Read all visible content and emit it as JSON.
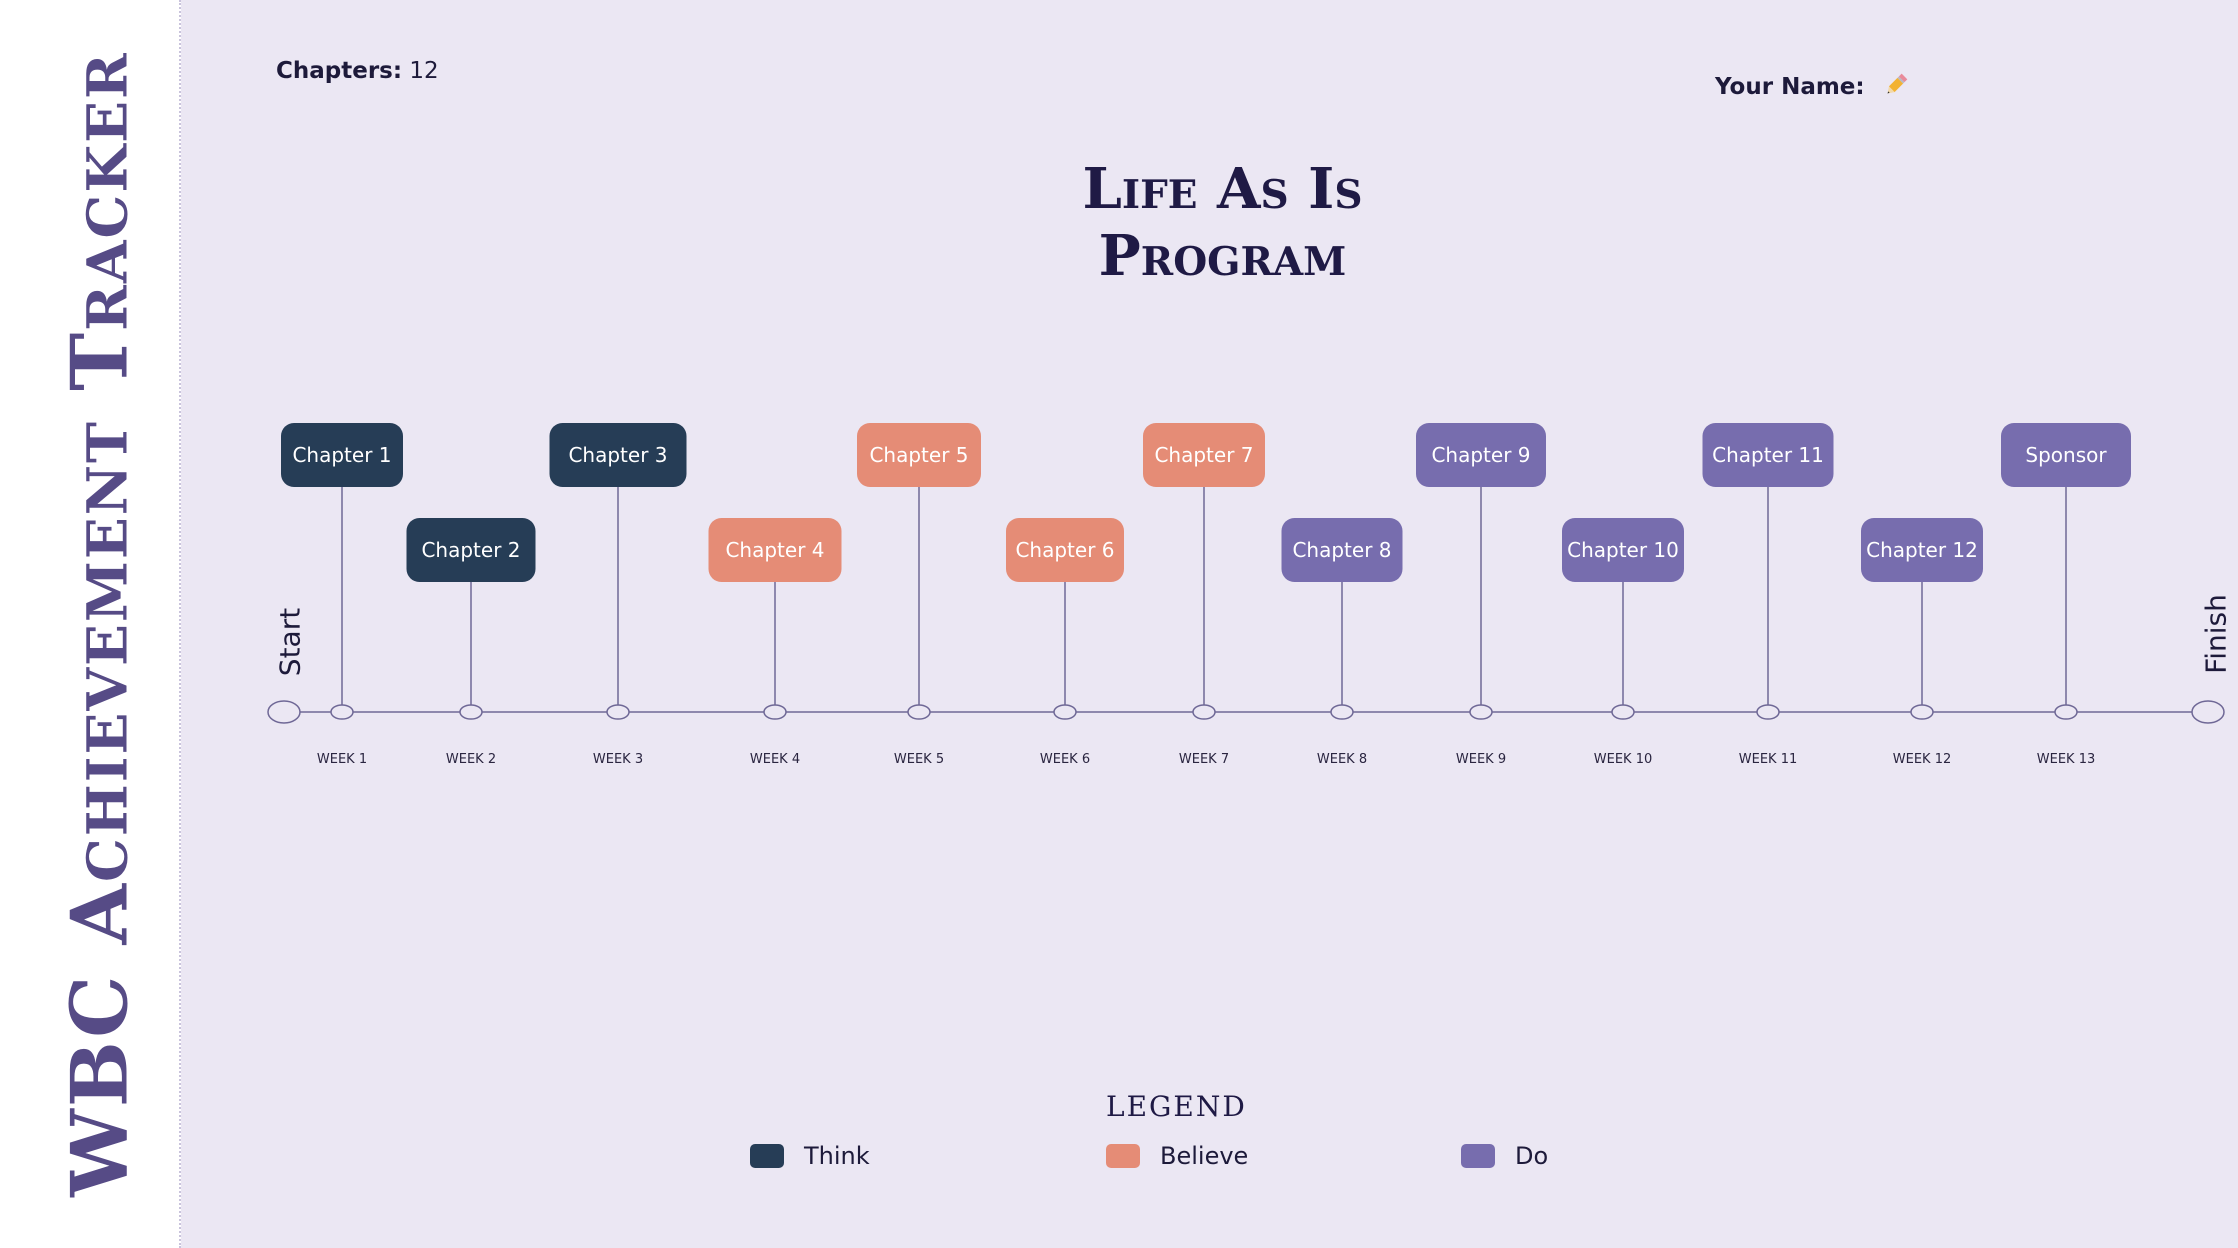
{
  "sidebar": {
    "title": "WBC Achievement Tracker"
  },
  "header": {
    "chapters_label": "Chapters:",
    "chapters_value": "12",
    "name_label": "Your Name:",
    "name_icon": "pencil-icon"
  },
  "title": {
    "line1": "Life As Is",
    "line2": "Program"
  },
  "colors": {
    "think": "#263d56",
    "believe": "#e58c76",
    "do": "#776dae",
    "line": "#6f6896"
  },
  "timeline": {
    "start_label": "Start",
    "finish_label": "Finish",
    "milestones": [
      {
        "label": "Chapter 1",
        "week": "WEEK 1",
        "category": "think",
        "level": "high"
      },
      {
        "label": "Chapter 2",
        "week": "WEEK 2",
        "category": "think",
        "level": "low"
      },
      {
        "label": "Chapter 3",
        "week": "WEEK 3",
        "category": "think",
        "level": "high"
      },
      {
        "label": "Chapter 4",
        "week": "WEEK 4",
        "category": "believe",
        "level": "low"
      },
      {
        "label": "Chapter 5",
        "week": "WEEK 5",
        "category": "believe",
        "level": "high"
      },
      {
        "label": "Chapter 6",
        "week": "WEEK 6",
        "category": "believe",
        "level": "low"
      },
      {
        "label": "Chapter 7",
        "week": "WEEK 7",
        "category": "believe",
        "level": "high"
      },
      {
        "label": "Chapter 8",
        "week": "WEEK 8",
        "category": "do",
        "level": "low"
      },
      {
        "label": "Chapter 9",
        "week": "WEEK 9",
        "category": "do",
        "level": "high"
      },
      {
        "label": "Chapter 10",
        "week": "WEEK 10",
        "category": "do",
        "level": "low"
      },
      {
        "label": "Chapter 11",
        "week": "WEEK 11",
        "category": "do",
        "level": "high"
      },
      {
        "label": "Chapter 12",
        "week": "WEEK 12",
        "category": "do",
        "level": "low"
      },
      {
        "label": "Sponsor",
        "week": "WEEK 13",
        "category": "do",
        "level": "high"
      }
    ]
  },
  "legend": {
    "title": "LEGEND",
    "items": [
      {
        "label": "Think",
        "category": "think"
      },
      {
        "label": "Believe",
        "category": "believe"
      },
      {
        "label": "Do",
        "category": "do"
      }
    ]
  }
}
